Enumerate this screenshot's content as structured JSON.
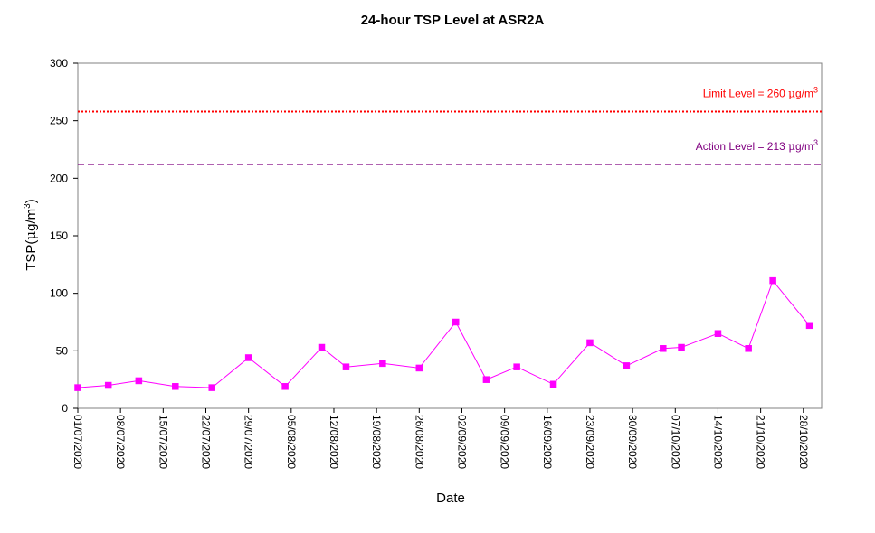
{
  "chart_data": {
    "type": "line",
    "title": "24-hour TSP Level at ASR2A",
    "xlabel": "Date",
    "ylabel_base": "TSP(",
    "ylabel_mu": "μ",
    "ylabel_unit": "g/m",
    "ylabel_sup": "3",
    "ylabel_close": ")",
    "ylim": [
      0,
      300
    ],
    "yticks": [
      "0",
      "50",
      "100",
      "150",
      "200",
      "250",
      "300"
    ],
    "x_range": [
      "2020-07-01",
      "2020-10-31"
    ],
    "xticks": [
      {
        "date": "2020-07-01",
        "label": "01/07/2020"
      },
      {
        "date": "2020-07-08",
        "label": "08/07/2020"
      },
      {
        "date": "2020-07-15",
        "label": "15/07/2020"
      },
      {
        "date": "2020-07-22",
        "label": "22/07/2020"
      },
      {
        "date": "2020-07-29",
        "label": "29/07/2020"
      },
      {
        "date": "2020-08-05",
        "label": "05/08/2020"
      },
      {
        "date": "2020-08-12",
        "label": "12/08/2020"
      },
      {
        "date": "2020-08-19",
        "label": "19/08/2020"
      },
      {
        "date": "2020-08-26",
        "label": "26/08/2020"
      },
      {
        "date": "2020-09-02",
        "label": "02/09/2020"
      },
      {
        "date": "2020-09-09",
        "label": "09/09/2020"
      },
      {
        "date": "2020-09-16",
        "label": "16/09/2020"
      },
      {
        "date": "2020-09-23",
        "label": "23/09/2020"
      },
      {
        "date": "2020-09-30",
        "label": "30/09/2020"
      },
      {
        "date": "2020-10-07",
        "label": "07/10/2020"
      },
      {
        "date": "2020-10-14",
        "label": "14/10/2020"
      },
      {
        "date": "2020-10-21",
        "label": "21/10/2020"
      },
      {
        "date": "2020-10-28",
        "label": "28/10/2020"
      }
    ],
    "grid": false,
    "series": [
      {
        "color": "#ff00ff",
        "points": [
          {
            "x": "2020-07-01",
            "y": 18
          },
          {
            "x": "2020-07-06",
            "y": 20
          },
          {
            "x": "2020-07-11",
            "y": 24
          },
          {
            "x": "2020-07-17",
            "y": 19
          },
          {
            "x": "2020-07-23",
            "y": 18
          },
          {
            "x": "2020-07-29",
            "y": 44
          },
          {
            "x": "2020-08-04",
            "y": 19
          },
          {
            "x": "2020-08-10",
            "y": 53
          },
          {
            "x": "2020-08-14",
            "y": 36
          },
          {
            "x": "2020-08-20",
            "y": 39
          },
          {
            "x": "2020-08-26",
            "y": 35
          },
          {
            "x": "2020-09-01",
            "y": 75
          },
          {
            "x": "2020-09-06",
            "y": 25
          },
          {
            "x": "2020-09-11",
            "y": 36
          },
          {
            "x": "2020-09-17",
            "y": 21
          },
          {
            "x": "2020-09-23",
            "y": 57
          },
          {
            "x": "2020-09-29",
            "y": 37
          },
          {
            "x": "2020-10-05",
            "y": 52
          },
          {
            "x": "2020-10-08",
            "y": 53
          },
          {
            "x": "2020-10-14",
            "y": 65
          },
          {
            "x": "2020-10-19",
            "y": 52
          },
          {
            "x": "2020-10-23",
            "y": 111
          },
          {
            "x": "2020-10-29",
            "y": 72
          }
        ]
      }
    ],
    "reference_lines": [
      {
        "name": "limit",
        "value": 260,
        "line_value": 258,
        "color": "#ff0000",
        "style": "dotted",
        "label_text": "Limit Level  = 260 ",
        "label_mu": "μ",
        "label_unit": "g/m",
        "label_sup": "3"
      },
      {
        "name": "action",
        "value": 213,
        "line_value": 212,
        "color": "#800080",
        "style": "dashed",
        "label_text": "Action Level  = 213 ",
        "label_mu": "μ",
        "label_unit": "g/m",
        "label_sup": "3"
      }
    ],
    "plot_area_border": "#808080"
  }
}
